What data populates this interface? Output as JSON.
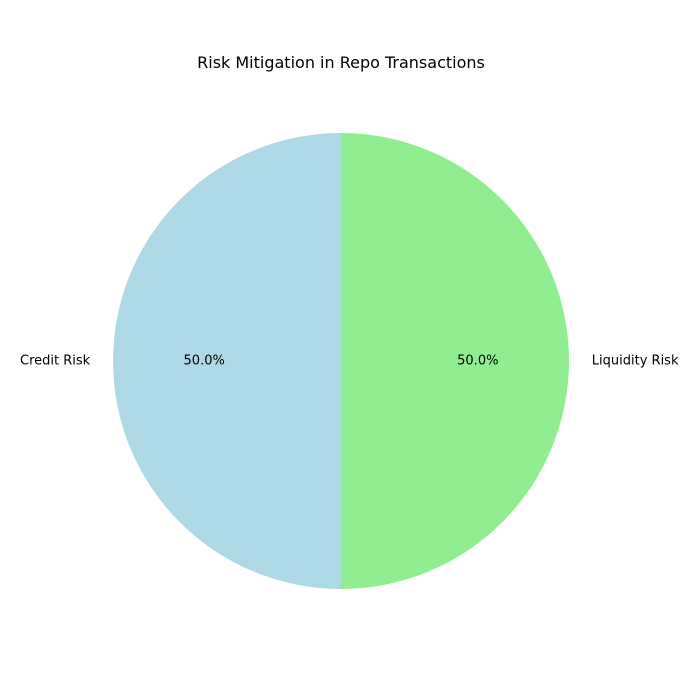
{
  "chart_data": {
    "type": "pie",
    "title": "Risk Mitigation in Repo Transactions",
    "categories": [
      "Credit Risk",
      "Liquidity Risk"
    ],
    "values": [
      50,
      50
    ],
    "percent_labels": [
      "50.0%",
      "50.0%"
    ],
    "colors": [
      "#add8e6",
      "#90ee90"
    ],
    "start_angle_deg": 90,
    "direction": "counterclockwise",
    "legend": "none"
  }
}
